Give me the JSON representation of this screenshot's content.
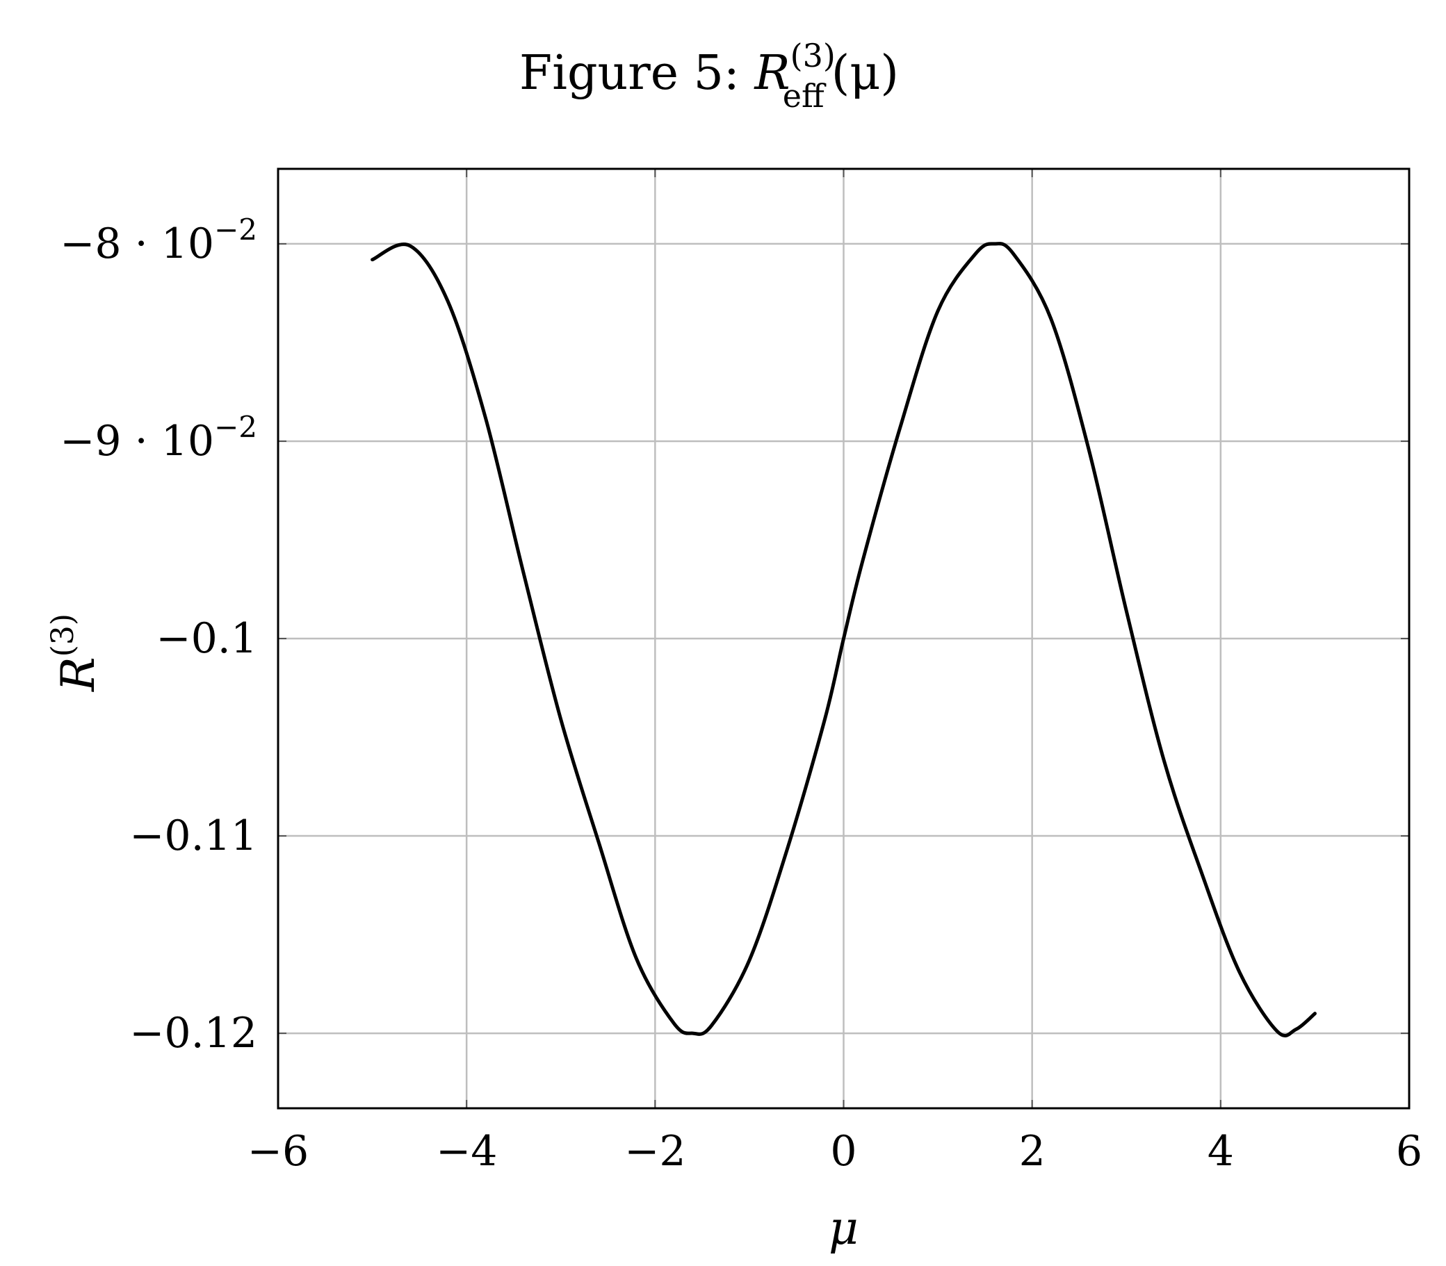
{
  "chart_data": {
    "type": "line",
    "title": {
      "prefix": "Figure 5: ",
      "symbol": "R",
      "superscript": "(3)",
      "subscript": "eff",
      "suffix": "(μ)"
    },
    "xlabel": "μ",
    "ylabel": {
      "symbol": "R",
      "superscript": "(3)"
    },
    "xlim": [
      -6,
      6
    ],
    "ylim": [
      -0.1238,
      -0.0762
    ],
    "x_ticks": [
      {
        "value": -6,
        "label": "−6"
      },
      {
        "value": -4,
        "label": "−4"
      },
      {
        "value": -2,
        "label": "−2"
      },
      {
        "value": 0,
        "label": "0"
      },
      {
        "value": 2,
        "label": "2"
      },
      {
        "value": 4,
        "label": "4"
      },
      {
        "value": 6,
        "label": "6"
      }
    ],
    "y_ticks": [
      {
        "value": -0.08,
        "mantissa": "−8",
        "power": "−2"
      },
      {
        "value": -0.09,
        "mantissa": "−9",
        "power": "−2"
      },
      {
        "value": -0.1,
        "label": "−0.1"
      },
      {
        "value": -0.11,
        "label": "−0.11"
      },
      {
        "value": -0.12,
        "label": "−0.12"
      }
    ],
    "grid": true,
    "line_color": "#000000",
    "grid_color": "#bebebe",
    "series": [
      {
        "x": [
          -5.0,
          -4.6,
          -4.2,
          -3.8,
          -3.4,
          -3.0,
          -2.6,
          -2.2,
          -1.8,
          -1.6,
          -1.4,
          -1.0,
          -0.6,
          -0.2,
          0.0,
          0.2,
          0.6,
          1.0,
          1.4,
          1.6,
          1.8,
          2.2,
          2.6,
          3.0,
          3.4,
          3.8,
          4.2,
          4.6,
          4.8,
          5.0
        ],
        "y": [
          -0.0808,
          -0.0801,
          -0.0829,
          -0.0888,
          -0.0966,
          -0.1041,
          -0.1103,
          -0.1162,
          -0.1195,
          -0.12,
          -0.1196,
          -0.1163,
          -0.1107,
          -0.1041,
          -0.1,
          -0.0961,
          -0.0893,
          -0.0834,
          -0.0805,
          -0.08,
          -0.0805,
          -0.0838,
          -0.0904,
          -0.0986,
          -0.1062,
          -0.1119,
          -0.1169,
          -0.1199,
          -0.1198,
          -0.119
        ]
      }
    ]
  }
}
